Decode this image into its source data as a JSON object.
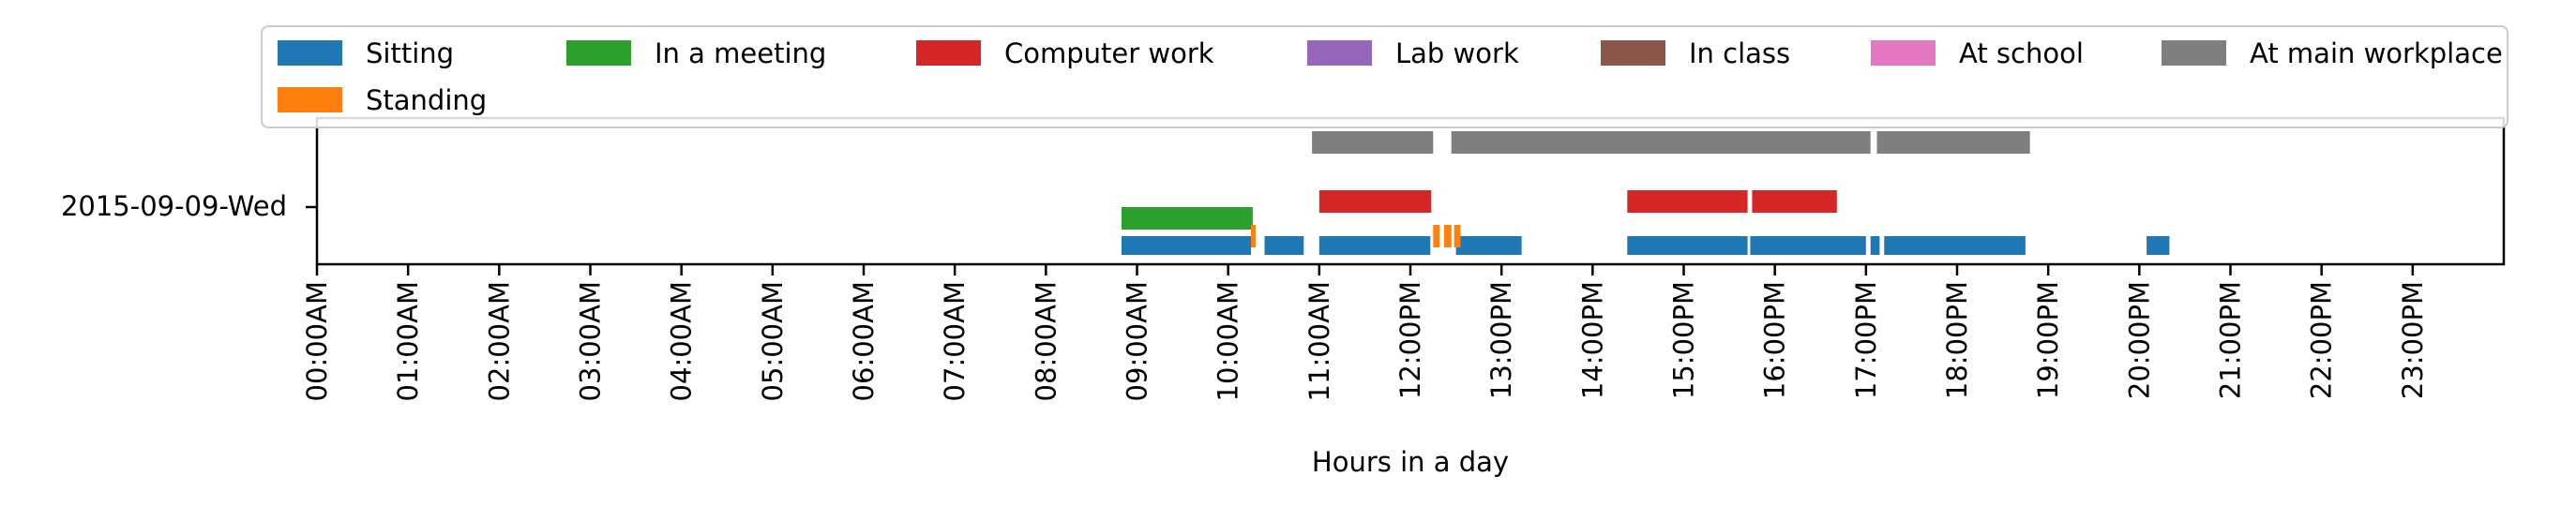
{
  "chart_data": {
    "type": "timeline",
    "title": "",
    "xlabel": "Hours in a day",
    "ylabel": "",
    "x_range": [
      0,
      24
    ],
    "grid": false,
    "legend_placement": "top",
    "ytick_label": "2015-09-09-Wed",
    "xtick_labels": [
      "00:00AM",
      "01:00AM",
      "02:00AM",
      "03:00AM",
      "04:00AM",
      "05:00AM",
      "06:00AM",
      "07:00AM",
      "08:00AM",
      "09:00AM",
      "10:00AM",
      "11:00AM",
      "12:00PM",
      "13:00PM",
      "14:00PM",
      "15:00PM",
      "16:00PM",
      "17:00PM",
      "18:00PM",
      "19:00PM",
      "20:00PM",
      "21:00PM",
      "22:00PM",
      "23:00PM"
    ],
    "series": [
      {
        "name": "Sitting",
        "color": "#1f77b4",
        "intervals": [
          [
            8.83,
            10.25
          ],
          [
            10.4,
            10.83
          ],
          [
            11.0,
            12.22
          ],
          [
            12.5,
            13.22
          ],
          [
            14.38,
            15.7
          ],
          [
            15.73,
            17.0
          ],
          [
            17.05,
            17.15
          ],
          [
            17.2,
            18.75
          ],
          [
            20.08,
            20.33
          ]
        ]
      },
      {
        "name": "In a meeting",
        "color": "#2ca02c",
        "intervals": [
          [
            8.83,
            10.27
          ]
        ]
      },
      {
        "name": "Computer work",
        "color": "#d62728",
        "intervals": [
          [
            11.0,
            12.23
          ],
          [
            14.38,
            15.7
          ],
          [
            15.75,
            16.68
          ]
        ]
      },
      {
        "name": "Lab work",
        "color": "#9467bd",
        "intervals": []
      },
      {
        "name": "In class",
        "color": "#8c564b",
        "intervals": []
      },
      {
        "name": "At school",
        "color": "#e377c2",
        "intervals": []
      },
      {
        "name": "At main workplace",
        "color": "#7f7f7f",
        "intervals": [
          [
            10.92,
            12.25
          ],
          [
            12.45,
            17.05
          ],
          [
            17.12,
            18.8
          ]
        ]
      },
      {
        "name": "Standing",
        "color": "#ff7f0e",
        "intervals": [
          [
            10.25,
            10.3
          ],
          [
            12.25,
            12.32
          ],
          [
            12.37,
            12.45
          ],
          [
            12.48,
            12.55
          ]
        ]
      }
    ]
  }
}
